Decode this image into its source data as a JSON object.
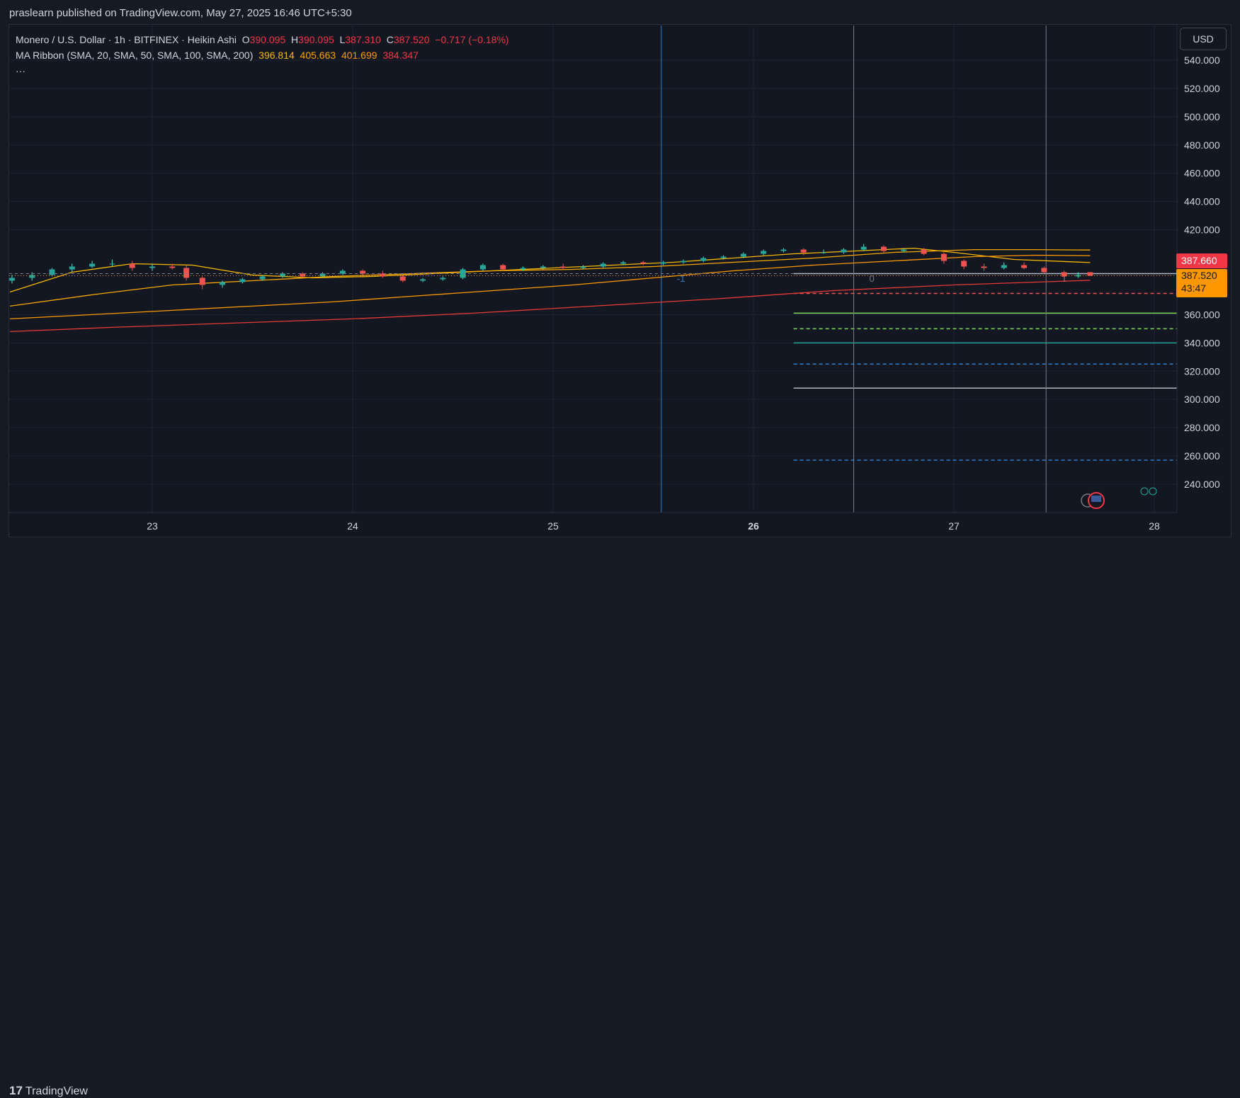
{
  "header": {
    "published": "praslearn published on TradingView.com, May 27, 2025 16:46 UTC+5:30"
  },
  "legend": {
    "symbol": "Monero / U.S. Dollar · 1h · BITFINEX · Heikin Ashi",
    "o_label": "O",
    "o_value": "390.095",
    "h_label": "H",
    "h_value": "390.095",
    "l_label": "L",
    "l_value": "387.310",
    "c_label": "C",
    "c_value": "387.520",
    "change": "−0.717 (−0.18%)",
    "ma_title": "MA Ribbon (SMA, 20, SMA, 50, SMA, 100, SMA, 200)",
    "ma20": "396.814",
    "ma50": "405.663",
    "ma100": "401.699",
    "ma200": "384.347",
    "more": "···"
  },
  "currency_button": "USD",
  "price_tags": {
    "red_value": "387.660",
    "last_value": "387.520",
    "countdown": "43:47"
  },
  "footer": {
    "logo_mark": "17",
    "logo_text": "TradingView"
  },
  "colors": {
    "up": "#26a69a",
    "up_bright": "#5ee0c8",
    "down": "#ef5350",
    "ma20": "#f5b800",
    "ma50": "#f7a600",
    "ma100": "#ff9800",
    "ma200": "#e53935",
    "grid": "#1f2330",
    "vline_blue": "#2f7fd0",
    "vline_grey": "#787b86"
  },
  "chart_data": {
    "type": "candlestick",
    "chart_style": "Heikin Ashi",
    "title": "Monero / U.S. Dollar · 1h · BITFINEX · Heikin Ashi",
    "x_ticks": [
      "23",
      "24",
      "25",
      "26",
      "27",
      "28"
    ],
    "y_ticks": [
      240,
      260,
      280,
      300,
      320,
      340,
      360,
      420,
      440,
      460,
      480,
      500,
      520,
      540
    ],
    "y_tick_format": "3dp",
    "ylim": [
      223,
      553
    ],
    "xlim_days": [
      22.29,
      28.11
    ],
    "grid": true,
    "candles_approx": [
      [
        22.3,
        384,
        388,
        382,
        386
      ],
      [
        22.4,
        386,
        390,
        384,
        388
      ],
      [
        22.5,
        388,
        393,
        387,
        392
      ],
      [
        22.6,
        392,
        396,
        390,
        394
      ],
      [
        22.7,
        394,
        398,
        393,
        396
      ],
      [
        22.8,
        396,
        399,
        394,
        396
      ],
      [
        22.9,
        396,
        398,
        391,
        393
      ],
      [
        23.0,
        393,
        396,
        391,
        394
      ],
      [
        23.1,
        394,
        396,
        392,
        393
      ],
      [
        23.17,
        393,
        395,
        384,
        386
      ],
      [
        23.25,
        386,
        387,
        378,
        381
      ],
      [
        23.35,
        381,
        384,
        379,
        383
      ],
      [
        23.45,
        383,
        386,
        382,
        385
      ],
      [
        23.55,
        385,
        388,
        384,
        387
      ],
      [
        23.65,
        387,
        390,
        386,
        389
      ],
      [
        23.75,
        389,
        390,
        386,
        387
      ],
      [
        23.85,
        387,
        390,
        386,
        389
      ],
      [
        23.95,
        389,
        392,
        388,
        391
      ],
      [
        24.05,
        391,
        392,
        388,
        389
      ],
      [
        24.15,
        389,
        391,
        386,
        387
      ],
      [
        24.25,
        387,
        388,
        383,
        384
      ],
      [
        24.35,
        384,
        386,
        383,
        385
      ],
      [
        24.45,
        385,
        387,
        384,
        386
      ],
      [
        24.55,
        386,
        393,
        385,
        392
      ],
      [
        24.65,
        392,
        396,
        391,
        395
      ],
      [
        24.75,
        395,
        396,
        391,
        392
      ],
      [
        24.85,
        392,
        394,
        391,
        393
      ],
      [
        24.95,
        393,
        395,
        392,
        394
      ],
      [
        25.05,
        394,
        396,
        392,
        393
      ],
      [
        25.15,
        393,
        395,
        392,
        394
      ],
      [
        25.25,
        394,
        397,
        393,
        396
      ],
      [
        25.35,
        396,
        398,
        395,
        397
      ],
      [
        25.45,
        397,
        398,
        395,
        396
      ],
      [
        25.55,
        396,
        398,
        395,
        397
      ],
      [
        25.65,
        397,
        399,
        396,
        398
      ],
      [
        25.75,
        398,
        401,
        397,
        400
      ],
      [
        25.85,
        400,
        402,
        399,
        401
      ],
      [
        25.95,
        401,
        404,
        400,
        403
      ],
      [
        26.05,
        403,
        406,
        402,
        405
      ],
      [
        26.15,
        405,
        407,
        404,
        406
      ],
      [
        26.25,
        406,
        407,
        402,
        404
      ],
      [
        26.35,
        404,
        406,
        403,
        404
      ],
      [
        26.45,
        404,
        407,
        403,
        406
      ],
      [
        26.55,
        406,
        410,
        405,
        408
      ],
      [
        26.65,
        408,
        409,
        404,
        405
      ],
      [
        26.75,
        405,
        407,
        404,
        406
      ],
      [
        26.85,
        406,
        407,
        402,
        403
      ],
      [
        26.95,
        403,
        404,
        396,
        398
      ],
      [
        27.05,
        398,
        399,
        392,
        394
      ],
      [
        27.15,
        394,
        396,
        391,
        393
      ],
      [
        27.25,
        393,
        397,
        392,
        395
      ],
      [
        27.35,
        395,
        397,
        392,
        393
      ],
      [
        27.45,
        393,
        394,
        389,
        390
      ],
      [
        27.55,
        390,
        391,
        386,
        387
      ],
      [
        27.62,
        387,
        390,
        386,
        388
      ],
      [
        27.68,
        390,
        390.095,
        387.31,
        387.52
      ]
    ],
    "series": [
      {
        "name": "SMA 20",
        "color": "#f5b800",
        "last": 396.814,
        "points": [
          [
            22.29,
            376
          ],
          [
            22.6,
            390
          ],
          [
            22.9,
            396
          ],
          [
            23.2,
            395
          ],
          [
            23.5,
            388
          ],
          [
            23.8,
            386
          ],
          [
            24.1,
            387
          ],
          [
            24.4,
            389
          ],
          [
            24.7,
            391
          ],
          [
            25.0,
            393
          ],
          [
            25.3,
            395
          ],
          [
            25.6,
            397
          ],
          [
            25.9,
            400
          ],
          [
            26.2,
            403
          ],
          [
            26.5,
            405
          ],
          [
            26.8,
            407
          ],
          [
            27.0,
            404
          ],
          [
            27.3,
            399
          ],
          [
            27.68,
            396.8
          ]
        ]
      },
      {
        "name": "SMA 50",
        "color": "#f7a600",
        "last": 405.663,
        "points": [
          [
            22.29,
            366
          ],
          [
            22.7,
            374
          ],
          [
            23.1,
            381
          ],
          [
            23.5,
            384
          ],
          [
            23.9,
            387
          ],
          [
            24.3,
            389
          ],
          [
            24.7,
            391
          ],
          [
            25.1,
            392
          ],
          [
            25.5,
            394
          ],
          [
            25.9,
            397
          ],
          [
            26.3,
            400
          ],
          [
            26.7,
            404
          ],
          [
            27.1,
            406
          ],
          [
            27.4,
            406
          ],
          [
            27.68,
            405.7
          ]
        ]
      },
      {
        "name": "SMA 100",
        "color": "#ff9800",
        "last": 401.699,
        "points": [
          [
            22.29,
            357
          ],
          [
            22.7,
            360
          ],
          [
            23.1,
            363
          ],
          [
            23.5,
            366
          ],
          [
            23.9,
            369
          ],
          [
            24.3,
            373
          ],
          [
            24.7,
            377
          ],
          [
            25.1,
            381
          ],
          [
            25.5,
            386
          ],
          [
            25.9,
            391
          ],
          [
            26.3,
            395
          ],
          [
            26.7,
            398
          ],
          [
            27.1,
            401
          ],
          [
            27.4,
            402
          ],
          [
            27.68,
            401.7
          ]
        ]
      },
      {
        "name": "SMA 200",
        "color": "#e53935",
        "last": 384.347,
        "points": [
          [
            22.29,
            348
          ],
          [
            22.8,
            351
          ],
          [
            23.4,
            354
          ],
          [
            24.0,
            357
          ],
          [
            24.6,
            361
          ],
          [
            25.2,
            366
          ],
          [
            25.8,
            371
          ],
          [
            26.4,
            377
          ],
          [
            27.0,
            381
          ],
          [
            27.68,
            384.3
          ]
        ]
      }
    ],
    "last_price": 387.52,
    "highlighted_price": 387.66,
    "vertical_markers": [
      {
        "x": 25.54,
        "label": "-1"
      },
      {
        "x": 26.5,
        "label": "0"
      },
      {
        "x": 27.46,
        "label": "1"
      }
    ],
    "horizontal_levels_from_day": 26.2,
    "horizontal_levels": [
      {
        "y": 389,
        "style": "solid",
        "color": "#b2b5be"
      },
      {
        "y": 375,
        "style": "dashed",
        "color": "#ef5350"
      },
      {
        "y": 361,
        "style": "solid",
        "color": "#7ed957"
      },
      {
        "y": 350,
        "style": "dashed",
        "color": "#7ed957"
      },
      {
        "y": 340,
        "style": "solid",
        "color": "#26a69a"
      },
      {
        "y": 325,
        "style": "dashed",
        "color": "#2f7fd0"
      },
      {
        "y": 308,
        "style": "solid",
        "color": "#b2b5be"
      },
      {
        "y": 257,
        "style": "dashed",
        "color": "#2f7fd0"
      }
    ]
  }
}
